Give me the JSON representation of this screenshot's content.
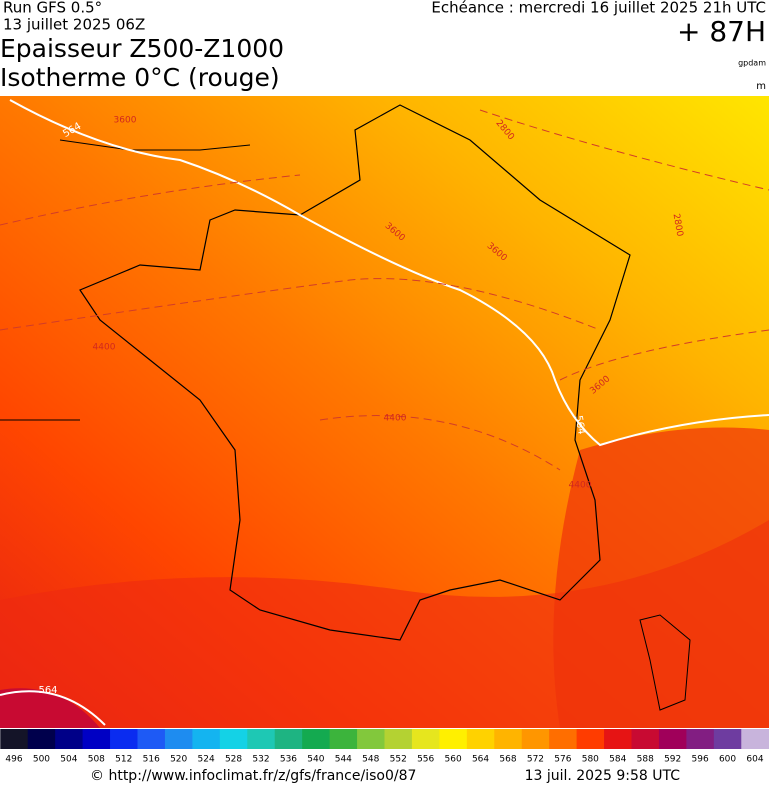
{
  "header": {
    "run": "Run GFS 0.5°",
    "run_date": "13 juillet 2025 06Z",
    "title_lines": [
      "Epaisseur Z500-Z1000",
      "Isotherme 0°C (rouge)"
    ],
    "echeance": "Echéance : mercredi 16 juillet 2025 21h UTC",
    "lead": "+ 87H",
    "unit_top": "gpdam",
    "unit_bottom": "m"
  },
  "map": {
    "thickness_labels": [
      "564",
      "564",
      "564"
    ],
    "isotherm_labels": [
      "3600",
      "2800",
      "3600",
      "3600",
      "2800",
      "4400",
      "3600",
      "4400",
      "4400"
    ]
  },
  "color_scale": {
    "labels": [
      "496",
      "500",
      "504",
      "508",
      "512",
      "516",
      "520",
      "524",
      "528",
      "532",
      "536",
      "540",
      "544",
      "548",
      "552",
      "556",
      "560",
      "564",
      "568",
      "572",
      "576",
      "580",
      "584",
      "588",
      "592",
      "596",
      "600",
      "604"
    ],
    "colors": [
      "#141428",
      "#00004c",
      "#000088",
      "#0000c4",
      "#0a2cf0",
      "#1e5af5",
      "#1e8cf0",
      "#14b4f0",
      "#14d2e6",
      "#1ec8b4",
      "#1eb482",
      "#14aa50",
      "#3cb43c",
      "#82c83c",
      "#b4d232",
      "#e6e61e",
      "#fff000",
      "#ffd200",
      "#ffb400",
      "#ff9600",
      "#ff6e00",
      "#ff3c00",
      "#e61414",
      "#c80a32",
      "#a0005a",
      "#821e82",
      "#6e3ca0",
      "#c8b4dc"
    ]
  },
  "footer": {
    "source": "© http://www.infoclimat.fr/z/gfs/france/iso0/87",
    "timestamp": "13 juil. 2025  9:58 UTC"
  }
}
